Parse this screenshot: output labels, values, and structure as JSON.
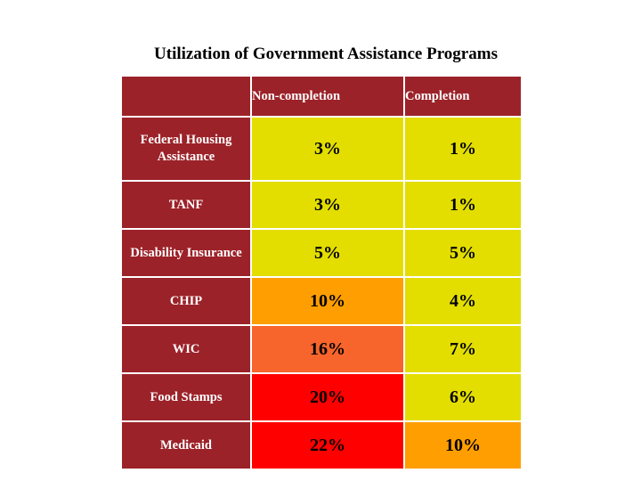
{
  "chart_data": {
    "type": "table",
    "title": "Utilization of Government Assistance Programs",
    "columns": [
      "Non-completion",
      "Completion"
    ],
    "rows": [
      {
        "program": "Federal Housing Assistance",
        "values": [
          "3%",
          "1%"
        ],
        "colors": [
          "#e3de00",
          "#e3de00"
        ]
      },
      {
        "program": "TANF",
        "values": [
          "3%",
          "1%"
        ],
        "colors": [
          "#e3de00",
          "#e3de00"
        ]
      },
      {
        "program": "Disability Insurance",
        "values": [
          "5%",
          "5%"
        ],
        "colors": [
          "#e3de00",
          "#e3de00"
        ]
      },
      {
        "program": "CHIP",
        "values": [
          "10%",
          "4%"
        ],
        "colors": [
          "#ff9e00",
          "#e3de00"
        ]
      },
      {
        "program": "WIC",
        "values": [
          "16%",
          "7%"
        ],
        "colors": [
          "#f7642c",
          "#e3de00"
        ]
      },
      {
        "program": "Food Stamps",
        "values": [
          "20%",
          "6%"
        ],
        "colors": [
          "#ff0000",
          "#e3de00"
        ]
      },
      {
        "program": "Medicaid",
        "values": [
          "22%",
          "10%"
        ],
        "colors": [
          "#ff0000",
          "#ff9e00"
        ]
      }
    ]
  }
}
